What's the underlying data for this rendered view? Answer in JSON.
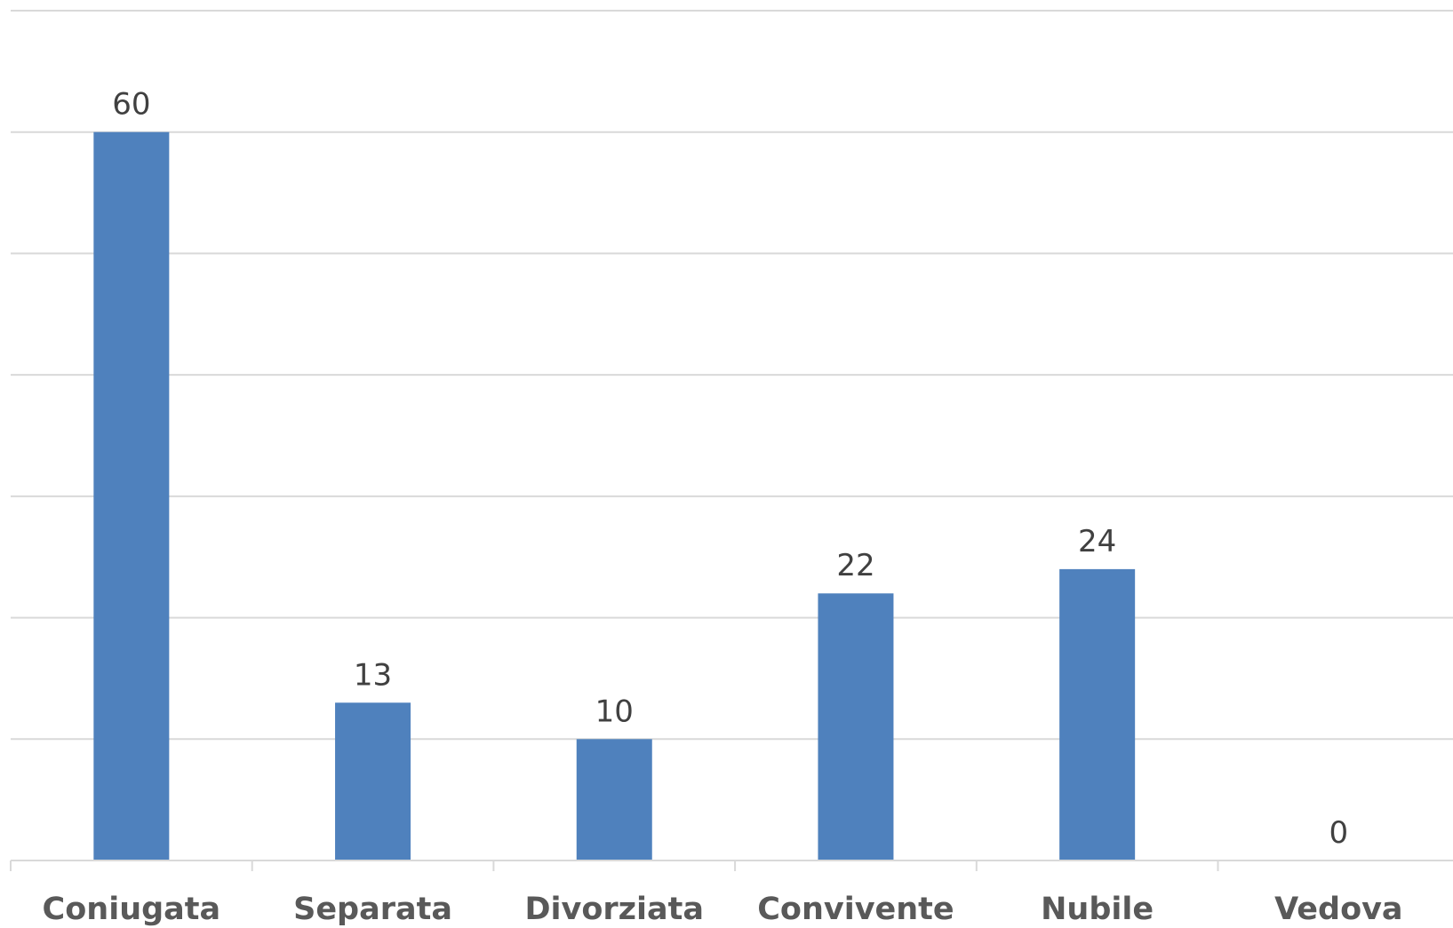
{
  "chart_data": {
    "type": "bar",
    "categories": [
      "Coniugata",
      "Separata",
      "Divorziata",
      "Convivente",
      "Nubile",
      "Vedova"
    ],
    "values": [
      60,
      13,
      10,
      22,
      24,
      0
    ],
    "data_labels": [
      "60",
      "13",
      "10",
      "22",
      "24",
      "0"
    ],
    "title": "",
    "xlabel": "",
    "ylabel": "",
    "ylim": [
      0,
      70
    ],
    "grid": true,
    "gridline_step": 10,
    "y_tick_labels_shown": false,
    "legend": "none",
    "colors": {
      "bar": "#4f81bd",
      "grid": "#d9d9d9",
      "data_label": "#404040",
      "category_label": "#595959"
    }
  }
}
